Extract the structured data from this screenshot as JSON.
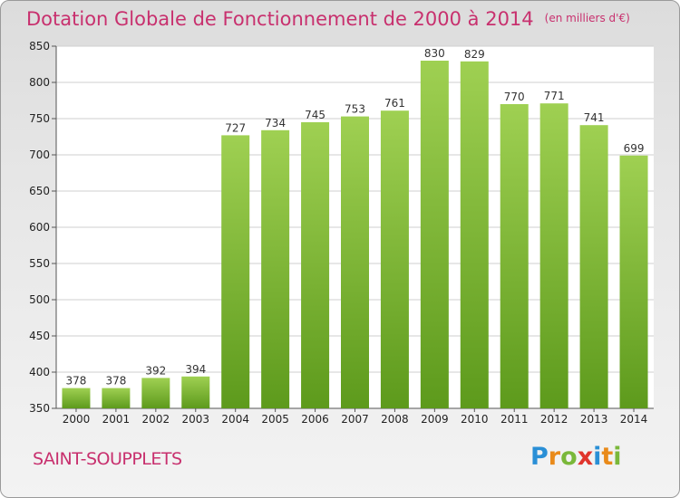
{
  "header": {
    "title": "Dotation Globale de Fonctionnement de 2000 à 2014",
    "unit": "(en milliers d'€)"
  },
  "commune": "SAINT-SOUPPLETS",
  "logo": {
    "text": "Proxiti",
    "letters": [
      {
        "ch": "P",
        "color": "#2a8fd6"
      },
      {
        "ch": "r",
        "color": "#e98a1a"
      },
      {
        "ch": "o",
        "color": "#7ab83a"
      },
      {
        "ch": "x",
        "color": "#e0342c"
      },
      {
        "ch": "i",
        "color": "#2a8fd6"
      },
      {
        "ch": "t",
        "color": "#e98a1a"
      },
      {
        "ch": "i",
        "color": "#7ab83a"
      }
    ]
  },
  "colors": {
    "title": "#c8306e",
    "bar_top": "#9fd052",
    "bar_bottom": "#5d9a1c",
    "grid": "#cfcfcf"
  },
  "chart_data": {
    "type": "bar",
    "title": "Dotation Globale de Fonctionnement de 2000 à 2014",
    "ylabel": "(en milliers d'€)",
    "categories": [
      "2000",
      "2001",
      "2002",
      "2003",
      "2004",
      "2005",
      "2006",
      "2007",
      "2008",
      "2009",
      "2010",
      "2011",
      "2012",
      "2013",
      "2014"
    ],
    "values": [
      378,
      378,
      392,
      394,
      727,
      734,
      745,
      753,
      761,
      830,
      829,
      770,
      771,
      741,
      699
    ],
    "ylim": [
      350,
      850
    ],
    "yticks": [
      350,
      400,
      450,
      500,
      550,
      600,
      650,
      700,
      750,
      800,
      850
    ],
    "grid": true,
    "data_labels": true
  }
}
